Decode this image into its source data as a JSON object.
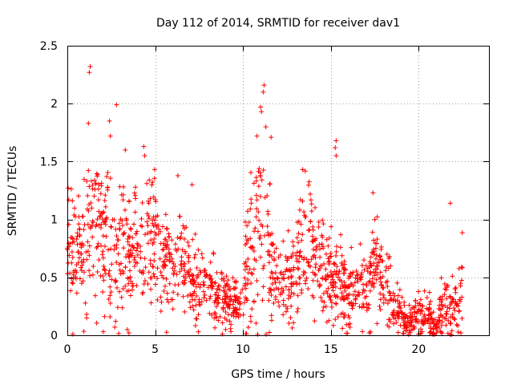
{
  "chart_data": {
    "type": "scatter",
    "title": "Day 112 of 2014, SRMTID for receiver dav1",
    "xlabel": "GPS time / hours",
    "ylabel": "SRMTID / TECUs",
    "xlim": [
      0,
      24
    ],
    "ylim": [
      0,
      2.5
    ],
    "grid": true,
    "marker": "+",
    "series_color": "#ff0000",
    "x_ticks": [
      {
        "value": 0,
        "label": "0"
      },
      {
        "value": 5,
        "label": "5"
      },
      {
        "value": 10,
        "label": "10"
      },
      {
        "value": 15,
        "label": "15"
      },
      {
        "value": 20,
        "label": "20"
      }
    ],
    "y_ticks": [
      {
        "value": 0,
        "label": "0"
      },
      {
        "value": 0.5,
        "label": "0.5"
      },
      {
        "value": 1,
        "label": "1"
      },
      {
        "value": 1.5,
        "label": "1.5"
      },
      {
        "value": 2,
        "label": "2"
      },
      {
        "value": 2.5,
        "label": "2.5"
      }
    ],
    "profile": {
      "x": [
        0,
        0.5,
        1,
        1.5,
        2,
        2.5,
        3,
        3.5,
        4,
        4.5,
        5,
        5.5,
        6,
        6.5,
        7,
        7.5,
        8,
        8.5,
        9,
        9.5,
        10,
        10.5,
        11,
        11.5,
        12,
        12.5,
        13,
        13.5,
        14,
        14.5,
        15,
        15.5,
        16,
        16.5,
        17,
        17.5,
        18,
        18.5,
        19,
        19.5,
        20,
        20.5,
        21,
        21.5,
        22,
        22.5
      ],
      "y": [
        0.7,
        0.75,
        0.8,
        0.95,
        0.85,
        0.75,
        0.8,
        0.7,
        0.85,
        0.75,
        0.8,
        0.65,
        0.6,
        0.7,
        0.5,
        0.45,
        0.4,
        0.35,
        0.3,
        0.25,
        0.4,
        0.75,
        1.0,
        0.7,
        0.45,
        0.4,
        0.5,
        0.75,
        0.85,
        0.6,
        0.5,
        0.45,
        0.35,
        0.4,
        0.45,
        0.6,
        0.45,
        0.3,
        0.15,
        0.12,
        0.2,
        0.15,
        0.05,
        0.3,
        0.2,
        0.4
      ],
      "spread": [
        0.2,
        0.25,
        0.3,
        0.4,
        0.35,
        0.3,
        0.3,
        0.3,
        0.3,
        0.28,
        0.28,
        0.25,
        0.22,
        0.25,
        0.2,
        0.18,
        0.15,
        0.15,
        0.14,
        0.12,
        0.2,
        0.35,
        0.45,
        0.3,
        0.18,
        0.18,
        0.22,
        0.3,
        0.3,
        0.22,
        0.2,
        0.18,
        0.14,
        0.15,
        0.18,
        0.25,
        0.18,
        0.15,
        0.08,
        0.06,
        0.12,
        0.1,
        0.04,
        0.15,
        0.12,
        0.18
      ]
    },
    "num_samples": 1600,
    "highlight_points": [
      {
        "x": 1.3,
        "y": 2.32
      },
      {
        "x": 1.25,
        "y": 2.27
      },
      {
        "x": 2.8,
        "y": 1.99
      },
      {
        "x": 2.4,
        "y": 1.85
      },
      {
        "x": 2.45,
        "y": 1.72
      },
      {
        "x": 1.2,
        "y": 1.83
      },
      {
        "x": 3.3,
        "y": 1.6
      },
      {
        "x": 4.35,
        "y": 1.63
      },
      {
        "x": 4.4,
        "y": 1.55
      },
      {
        "x": 11.2,
        "y": 2.16
      },
      {
        "x": 11.15,
        "y": 2.1
      },
      {
        "x": 11.0,
        "y": 1.97
      },
      {
        "x": 11.05,
        "y": 1.93
      },
      {
        "x": 10.8,
        "y": 1.72
      },
      {
        "x": 11.3,
        "y": 1.8
      },
      {
        "x": 11.6,
        "y": 1.71
      },
      {
        "x": 15.3,
        "y": 1.68
      },
      {
        "x": 15.25,
        "y": 1.62
      },
      {
        "x": 15.3,
        "y": 1.55
      },
      {
        "x": 13.4,
        "y": 1.43
      },
      {
        "x": 17.4,
        "y": 1.23
      },
      {
        "x": 0.05,
        "y": 1.27
      },
      {
        "x": 21.8,
        "y": 1.14
      },
      {
        "x": 7.1,
        "y": 1.3
      },
      {
        "x": 2.75,
        "y": 0.12
      },
      {
        "x": 2.7,
        "y": 0.07
      },
      {
        "x": 1.1,
        "y": 0.18
      },
      {
        "x": 1.1,
        "y": 0.15
      },
      {
        "x": 20.8,
        "y": 0.01
      },
      {
        "x": 22.4,
        "y": 0.02
      }
    ]
  }
}
